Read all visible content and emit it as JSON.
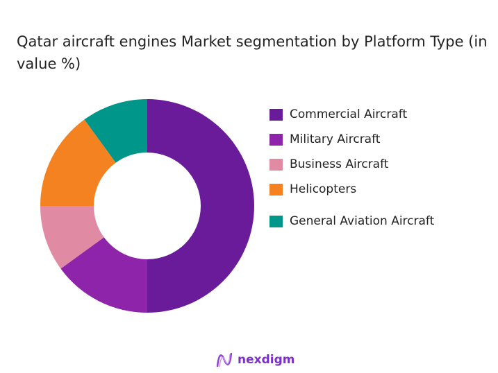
{
  "chart_data": {
    "type": "donut",
    "title": "Qatar aircraft engines Market segmentation by Platform Type (in value %)",
    "categories": [
      "Commercial Aircraft",
      "Military Aircraft",
      "Business Aircraft",
      "Helicopters",
      "General Aviation Aircraft"
    ],
    "values": [
      50,
      15,
      10,
      15,
      10
    ],
    "colors": [
      "#6a1b9a",
      "#8e24aa",
      "#e08aa4",
      "#f58220",
      "#00968a"
    ],
    "legend_position": "right"
  },
  "logo": {
    "text": "nexdigm"
  }
}
